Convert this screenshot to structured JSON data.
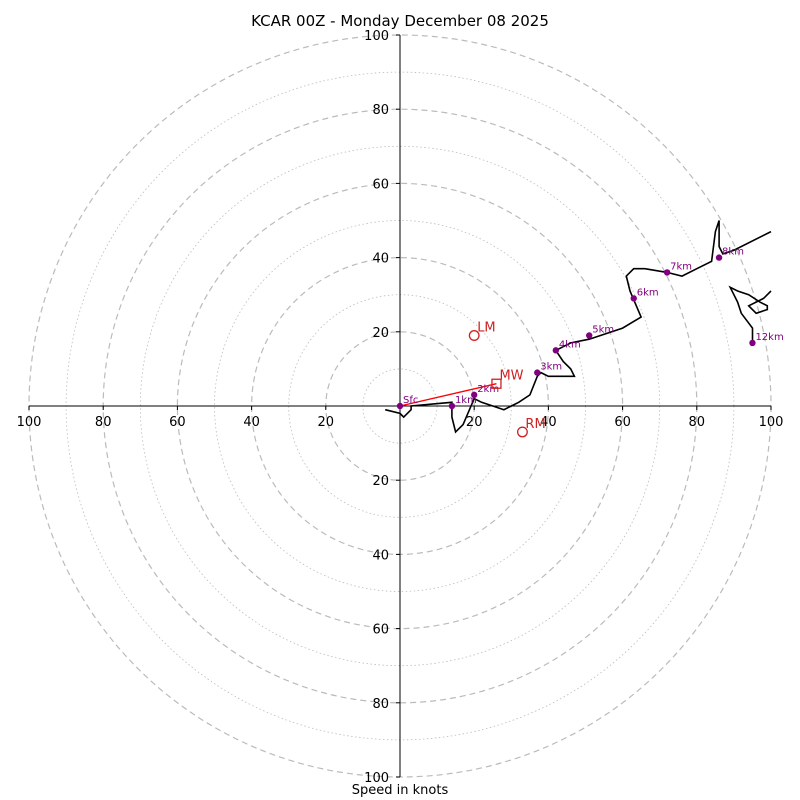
{
  "chart_data": {
    "type": "hodograph",
    "title": "KCAR 00Z - Monday December 08 2025",
    "xlabel": "Speed in knots",
    "range": [
      -100,
      100
    ],
    "rings": [
      10,
      20,
      30,
      40,
      50,
      60,
      70,
      80,
      90,
      100
    ],
    "tick_labels": [
      "100",
      "80",
      "60",
      "40",
      "20",
      "20",
      "40",
      "60",
      "80",
      "100"
    ],
    "tick_values": [
      -100,
      -80,
      -60,
      -40,
      -20,
      20,
      40,
      60,
      80,
      100
    ],
    "hodograph_trace": [
      [
        -4,
        -1
      ],
      [
        0,
        -2
      ],
      [
        1,
        -3
      ],
      [
        3,
        -1
      ],
      [
        3,
        0
      ],
      [
        14,
        1
      ],
      [
        14,
        -3
      ],
      [
        15,
        -7
      ],
      [
        17,
        -5
      ],
      [
        20,
        2
      ],
      [
        22,
        1
      ],
      [
        25,
        0
      ],
      [
        28,
        -1
      ],
      [
        30,
        0
      ],
      [
        32,
        1
      ],
      [
        35,
        3
      ],
      [
        37,
        8
      ],
      [
        38,
        9
      ],
      [
        40,
        8
      ],
      [
        47,
        8
      ],
      [
        46,
        10
      ],
      [
        44,
        12
      ],
      [
        42,
        15
      ],
      [
        46,
        17
      ],
      [
        51,
        18
      ],
      [
        60,
        21
      ],
      [
        65,
        24
      ],
      [
        62,
        31
      ],
      [
        61,
        35
      ],
      [
        63,
        37
      ],
      [
        66,
        37
      ],
      [
        72,
        36
      ],
      [
        76,
        35
      ],
      [
        80,
        37
      ],
      [
        84,
        39
      ],
      [
        85,
        47
      ],
      [
        86,
        50
      ],
      [
        86,
        43
      ],
      [
        87,
        41
      ],
      [
        90,
        42
      ],
      [
        100,
        47
      ]
    ],
    "upper_segment": [
      [
        100,
        31
      ],
      [
        99,
        30
      ],
      [
        98,
        29
      ],
      [
        94,
        27
      ],
      [
        96,
        25
      ],
      [
        99,
        26
      ],
      [
        99,
        27
      ],
      [
        97,
        28
      ],
      [
        94,
        30
      ],
      [
        91,
        31
      ],
      [
        89,
        32
      ],
      [
        91,
        28
      ],
      [
        92,
        25
      ],
      [
        95,
        21
      ],
      [
        95,
        17
      ]
    ],
    "height_markers": [
      {
        "label": "Sfc",
        "u": 0,
        "v": 0
      },
      {
        "label": "1km",
        "u": 14,
        "v": 0
      },
      {
        "label": "2km",
        "u": 20,
        "v": 3
      },
      {
        "label": "3km",
        "u": 37,
        "v": 9
      },
      {
        "label": "4km",
        "u": 42,
        "v": 15
      },
      {
        "label": "5km",
        "u": 51,
        "v": 19
      },
      {
        "label": "6km",
        "u": 63,
        "v": 29
      },
      {
        "label": "7km",
        "u": 72,
        "v": 36
      },
      {
        "label": "8km",
        "u": 86,
        "v": 40
      },
      {
        "label": "12km",
        "u": 95,
        "v": 17
      }
    ],
    "motion_points": [
      {
        "label": "LM",
        "u": 20,
        "v": 19,
        "shape": "circle"
      },
      {
        "label": "MW",
        "u": 26,
        "v": 6,
        "shape": "square"
      },
      {
        "label": "RM",
        "u": 33,
        "v": -7,
        "shape": "circle"
      }
    ],
    "shear_vector": {
      "from": [
        0,
        0
      ],
      "to": [
        26,
        6
      ]
    },
    "colors": {
      "trace": "#000000",
      "marker": "#800080",
      "motion": "#cc2222",
      "shear": "#ff0000",
      "grid": "#bbbbbb"
    }
  }
}
